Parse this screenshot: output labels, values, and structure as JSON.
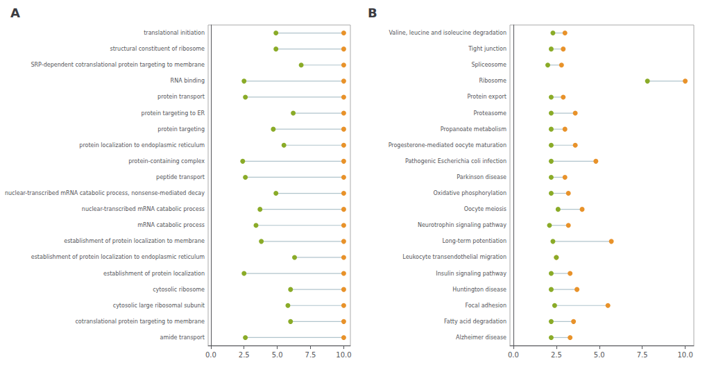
{
  "chart_data": [
    {
      "type": "dumbbell",
      "title": "A",
      "categories": [
        "translational initiation",
        "structural constituent of ribosome",
        "SRP-dependent cotranslational protein targeting to membrane",
        "RNA binding",
        "protein transport",
        "protein targeting to ER",
        "protein targeting",
        "protein localization to endoplasmic reticulum",
        "protein-containing complex",
        "peptide transport",
        "nuclear-transcribed mRNA catabolic process, nonsense-mediated decay",
        "nuclear-transcribed mRNA catabolic process",
        "mRNA catabolic process",
        "establishment of protein localization to membrane",
        "establishment of protein localization to endoplasmic reticulum",
        "establishment of protein localization",
        "cytosolic ribosome",
        "cytosolic large ribosomal subunit",
        "cotranslational protein targeting to membrane",
        "amide transport"
      ],
      "series": [
        {
          "color": "#8aab28",
          "values": [
            4.9,
            4.9,
            6.8,
            2.5,
            2.6,
            6.2,
            4.7,
            5.5,
            2.4,
            2.6,
            4.9,
            3.7,
            3.4,
            3.8,
            6.3,
            2.5,
            6.0,
            5.8,
            6.0,
            2.6
          ]
        },
        {
          "color": "#e8922a",
          "values": [
            10.0,
            10.0,
            10.0,
            10.0,
            10.0,
            10.0,
            10.0,
            10.0,
            10.0,
            10.0,
            10.0,
            10.0,
            10.0,
            10.0,
            10.0,
            10.0,
            10.0,
            10.0,
            10.0,
            10.0
          ]
        }
      ],
      "xlim": [
        -0.2,
        10.5
      ],
      "xticks": [
        {
          "value": 0,
          "label": "0.0"
        },
        2.5,
        {
          "value": 5,
          "label": "5.0"
        },
        7.5,
        {
          "value": 10,
          "label": "10.0"
        }
      ],
      "grid": false
    },
    {
      "type": "dumbbell",
      "title": "B",
      "categories": [
        "Valine, leucine and isoleucine degradation",
        "Tight junction",
        "Spliceosome",
        "Ribosome",
        "Protein export",
        "Proteasome",
        "Propanoate metabolism",
        "Progesterone-mediated oocyte maturation",
        "Pathogenic Escherichia coli infection",
        "Parkinson disease",
        "Oxidative phosphorylation",
        "Oocyte meiosis",
        "Neurotrophin signaling pathway",
        "Long-term potentiation",
        "Leukocyte transendothelial migration",
        "Insulin signaling pathway",
        "Huntington disease",
        "Focal adhesion",
        "Fatty acid degradation",
        "Alzheimer disease"
      ],
      "series": [
        {
          "color": "#8aab28",
          "values": [
            2.3,
            2.2,
            2.0,
            7.8,
            2.2,
            2.2,
            2.2,
            2.2,
            2.2,
            2.2,
            2.2,
            2.6,
            2.1,
            2.3,
            2.5,
            2.2,
            2.2,
            2.4,
            2.2,
            2.2
          ]
        },
        {
          "color": "#e8922a",
          "values": [
            3.0,
            2.9,
            2.8,
            10.0,
            2.9,
            3.6,
            3.0,
            3.6,
            4.8,
            3.0,
            3.2,
            4.0,
            3.2,
            5.7,
            2.5,
            3.3,
            3.7,
            5.5,
            3.5,
            3.3
          ]
        }
      ],
      "xlim": [
        -0.2,
        10.5
      ],
      "xticks": [
        {
          "value": 0,
          "label": "0.0"
        },
        2.5,
        {
          "value": 5,
          "label": "5.0"
        },
        7.5,
        {
          "value": 10,
          "label": "10.0"
        }
      ],
      "grid": false
    }
  ]
}
